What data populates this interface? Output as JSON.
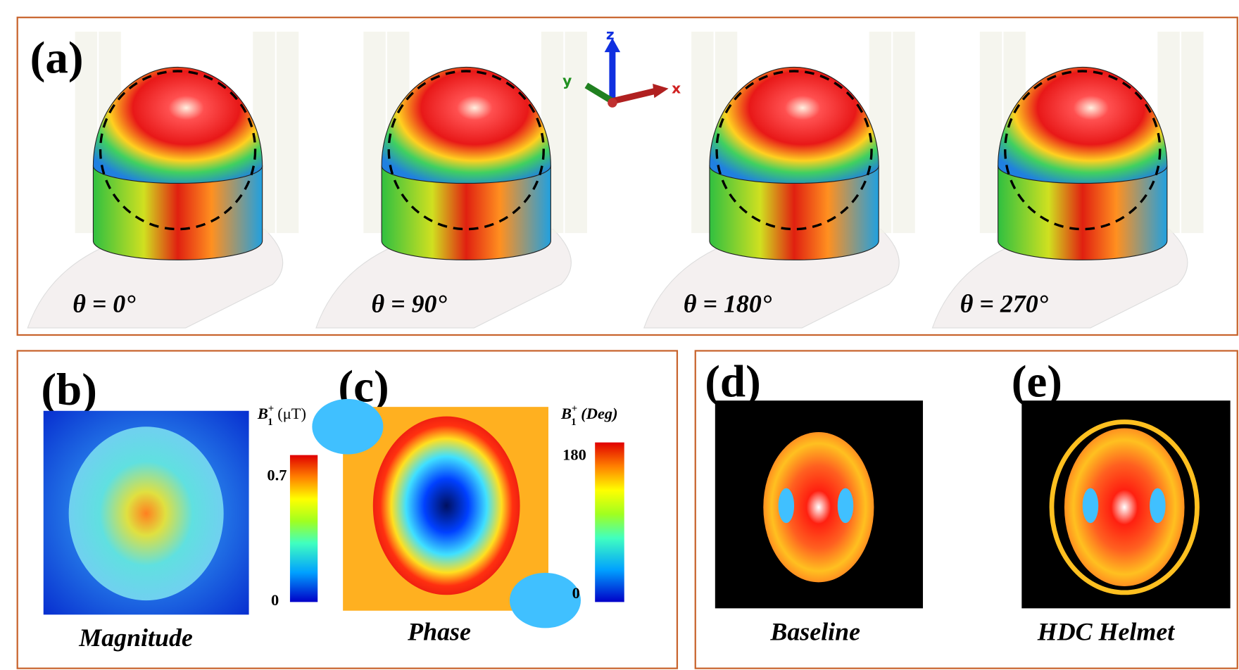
{
  "panel_a": {
    "label": "(a)",
    "views": [
      {
        "angle": "θ = 0°"
      },
      {
        "angle": "θ = 90°"
      },
      {
        "angle": "θ = 180°"
      },
      {
        "angle": "θ = 270°"
      }
    ],
    "axes": {
      "z": "z",
      "y": "y",
      "x": "x"
    }
  },
  "panel_b": {
    "label": "(b)",
    "caption": "Magnitude",
    "colorbar": {
      "symbol": "B",
      "superscript": "+",
      "subscript": "1",
      "unit": "(μT)",
      "max": 0.7,
      "min": 0
    }
  },
  "panel_c": {
    "label": "(c)",
    "caption": "Phase",
    "colorbar": {
      "symbol": "B",
      "superscript": "+",
      "subscript": "1",
      "unit": "(Deg)",
      "max": 180,
      "min": 0
    }
  },
  "panel_d": {
    "label": "(d)",
    "caption": "Baseline"
  },
  "panel_e": {
    "label": "(e)",
    "caption": "HDC Helmet"
  }
}
